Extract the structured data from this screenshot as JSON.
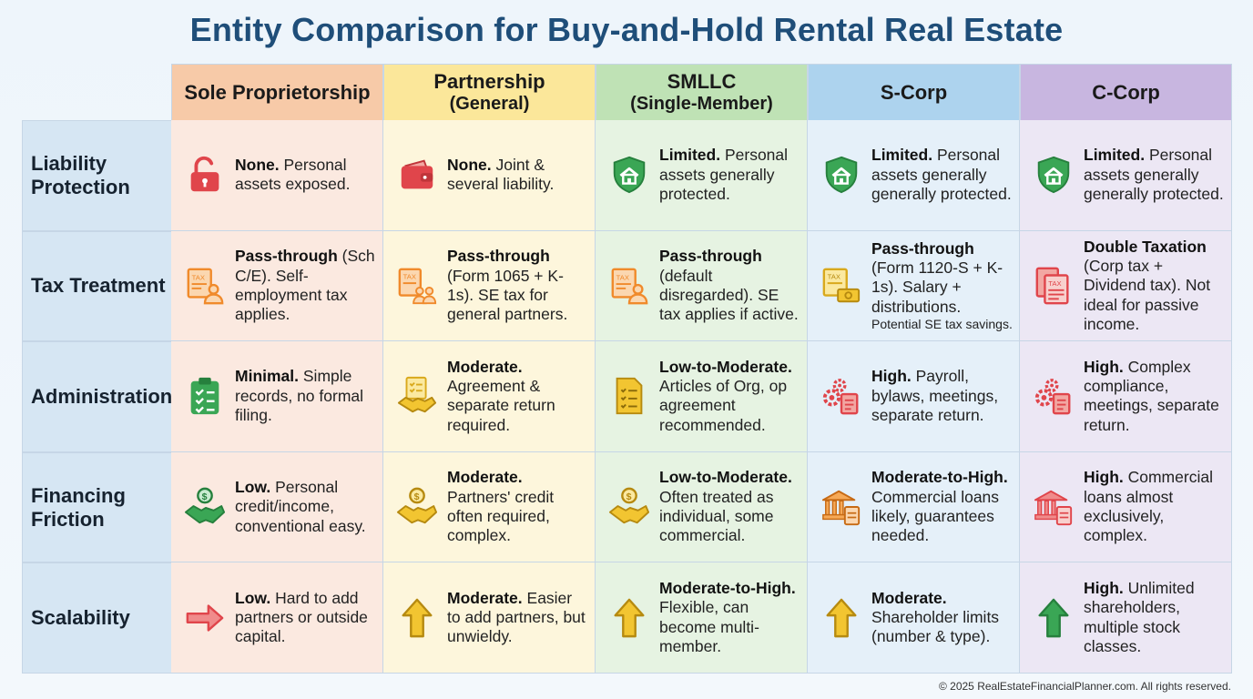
{
  "title": "Entity Comparison for Buy-and-Hold Rental Real Estate",
  "columns": [
    {
      "name": "Sole Proprietorship",
      "sub": ""
    },
    {
      "name": "Partnership",
      "sub": "(General)"
    },
    {
      "name": "SMLLC",
      "sub": "(Single-Member)"
    },
    {
      "name": "S-Corp",
      "sub": ""
    },
    {
      "name": "C-Corp",
      "sub": ""
    }
  ],
  "rows": [
    {
      "label": "Liability Protection",
      "cells": [
        {
          "icon": "open-lock-icon",
          "strong": "None.",
          "text": " Personal assets exposed."
        },
        {
          "icon": "wallet-icon",
          "strong": "None.",
          "text": " Joint & several liability."
        },
        {
          "icon": "shield-house-icon",
          "strong": "Limited.",
          "text": " Personal assets generally protected."
        },
        {
          "icon": "shield-house-icon",
          "strong": "Limited.",
          "text": " Personal assets generally generally protected."
        },
        {
          "icon": "shield-house-icon",
          "strong": "Limited.",
          "text": " Personal assets generally generally protected."
        }
      ]
    },
    {
      "label": "Tax Treatment",
      "cells": [
        {
          "icon": "tax-form-person-icon",
          "strong": "Pass-through",
          "text": " (Sch C/E). Self-employment tax applies."
        },
        {
          "icon": "tax-form-people-icon",
          "strong": "Pass-through",
          "text": " (Form 1065 + K-1s). SE tax for general partners."
        },
        {
          "icon": "tax-form-person-icon",
          "strong": "Pass-through",
          "text": " (default disregarded). SE tax applies if active."
        },
        {
          "icon": "tax-form-money-icon",
          "strong": "Pass-through",
          "text": " (Form 1120-S + K-1s). Salary + distributions.",
          "small": "Potential SE tax savings."
        },
        {
          "icon": "tax-documents-icon",
          "strong": "Double Taxation",
          "text": " (Corp tax + Dividend tax). Not ideal for passive income."
        }
      ]
    },
    {
      "label": "Administration",
      "cells": [
        {
          "icon": "clipboard-checklist-icon",
          "strong": "Minimal.",
          "text": " Simple records, no formal filing."
        },
        {
          "icon": "agreement-handshake-icon",
          "strong": "Moderate.",
          "text": " Agreement & separate return required."
        },
        {
          "icon": "document-checklist-icon",
          "strong": "Low-to-Moderate.",
          "text": " Articles of Org, op agreement recommended."
        },
        {
          "icon": "gears-document-icon",
          "strong": "High.",
          "text": " Payroll, bylaws, meetings, separate return."
        },
        {
          "icon": "gears-document-icon",
          "strong": "High.",
          "text": " Complex compliance, meetings, separate return."
        }
      ]
    },
    {
      "label": "Financing Friction",
      "cells": [
        {
          "icon": "money-handshake-icon",
          "strong": "Low.",
          "text": " Personal credit/income, conventional easy."
        },
        {
          "icon": "money-handshake-icon",
          "strong": "Moderate.",
          "text": " Partners' credit often required, complex."
        },
        {
          "icon": "money-handshake-icon",
          "strong": "Low-to-Moderate.",
          "text": " Often treated as individual, some commercial."
        },
        {
          "icon": "bank-document-icon",
          "strong": "Moderate-to-High.",
          "text": " Commercial loans likely, guarantees needed."
        },
        {
          "icon": "bank-document-icon",
          "strong": "High.",
          "text": " Commercial loans almost exclusively, complex."
        }
      ]
    },
    {
      "label": "Scalability",
      "cells": [
        {
          "icon": "right-arrow-icon",
          "strong": "Low.",
          "text": " Hard to add partners or outside capital."
        },
        {
          "icon": "up-arrow-icon",
          "strong": "Moderate.",
          "text": " Easier to add partners, but unwieldy."
        },
        {
          "icon": "up-arrow-icon",
          "strong": "Moderate-to-High.",
          "text": " Flexible, can become multi-member."
        },
        {
          "icon": "up-arrow-icon",
          "strong": "Moderate.",
          "text": " Shareholder limits (number & type)."
        },
        {
          "icon": "up-arrow-icon",
          "strong": "High.",
          "text": " Unlimited shareholders, multiple stock classes."
        }
      ]
    }
  ],
  "colors": {
    "title": "#1f4e79",
    "red": "#e0454b",
    "orange": "#f08a2b",
    "green": "#3aa655",
    "yellow": "#f2c531"
  },
  "footer": "© 2025 RealEstateFinancialPlanner.com. All rights reserved."
}
